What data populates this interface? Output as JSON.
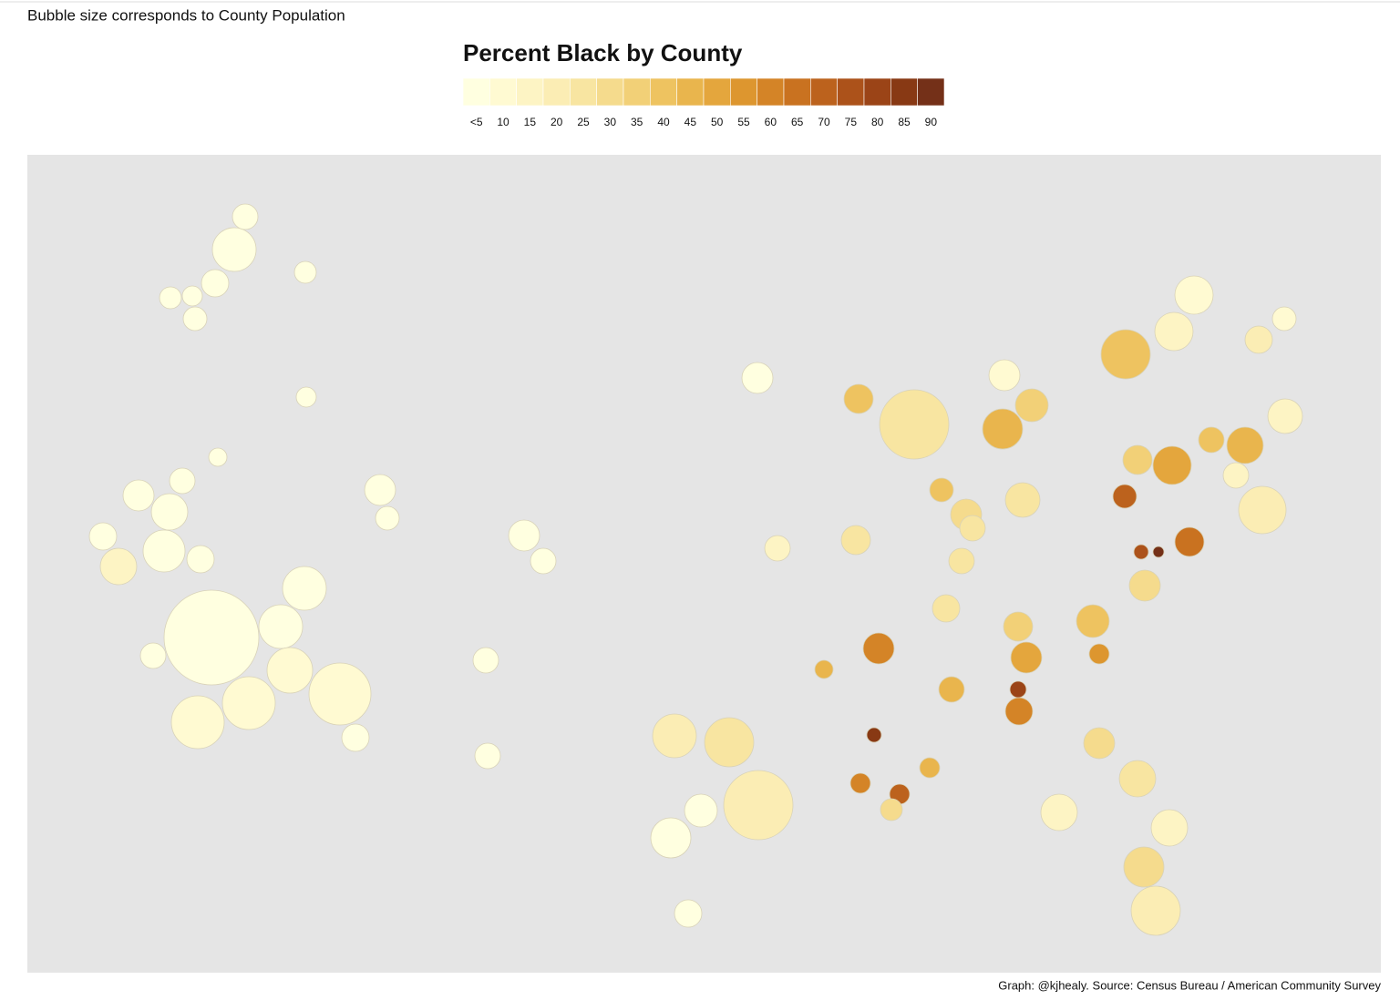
{
  "subtitle": "Bubble size corresponds to County Population",
  "caption": "Graph: @kjhealy. Source: Census Bureau / American Community Survey",
  "legend": {
    "title": "Percent Black by County",
    "colors": [
      "#ffffe0",
      "#fffad2",
      "#fdf4c4",
      "#fbedb4",
      "#f8e5a1",
      "#f5db8d",
      "#f2d077",
      "#eec360",
      "#e9b54d",
      "#e4a63d",
      "#dd962f",
      "#d48427",
      "#c97220",
      "#bc621d",
      "#ac521a",
      "#9b4417",
      "#883914",
      "#743018"
    ],
    "labels": [
      "<5",
      10,
      15,
      20,
      25,
      30,
      35,
      40,
      45,
      50,
      55,
      60,
      65,
      70,
      75,
      80,
      85,
      90,
      null
    ]
  },
  "counties": {
    "percent": [
      4,
      6,
      6,
      8,
      3,
      4,
      5,
      3,
      12,
      3,
      4,
      3,
      3,
      3,
      3,
      3,
      3,
      3,
      3,
      3,
      3,
      3,
      3,
      3,
      3,
      3,
      3,
      3,
      3,
      3,
      3,
      22,
      18,
      20,
      15,
      4,
      3,
      3,
      12,
      3,
      40,
      30,
      5,
      38,
      10,
      5,
      18,
      40,
      12,
      45,
      62,
      65,
      38,
      20,
      28,
      22,
      30,
      45,
      55,
      75,
      55,
      40,
      58,
      65,
      35,
      25,
      25,
      22,
      28,
      18,
      12,
      12,
      35,
      20,
      35,
      20,
      20,
      40,
      80,
      40,
      25,
      50,
      30,
      15,
      5,
      12,
      70,
      85
    ]
  }
}
